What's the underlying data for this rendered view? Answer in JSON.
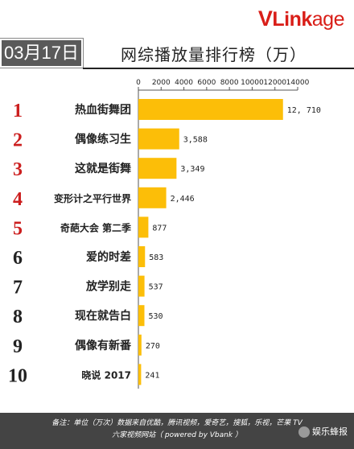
{
  "logo": {
    "v": "V",
    "l": "L",
    "ink": "ink",
    "age": "age"
  },
  "date": "03月17日",
  "title": "网综播放量排行榜（万）",
  "footer": {
    "line1": "备注：单位（万次）数据来自优酷，腾讯视频，爱奇艺，搜狐，乐视，芒果 TV",
    "line2": "六家视频网站（ powered by Vbank ）"
  },
  "watermark": "娱乐蜂报",
  "colors": {
    "bar": "#fcbe08",
    "rank": "#cc1f1f",
    "rank_dark": "#222222"
  },
  "chart_data": {
    "type": "bar",
    "orientation": "horizontal",
    "ranks": [
      "1",
      "2",
      "3",
      "4",
      "5",
      "6",
      "7",
      "8",
      "9",
      "10"
    ],
    "categories": [
      "热血街舞团",
      "偶像练习生",
      "这就是街舞",
      "变形计之平行世界",
      "奇葩大会 第二季",
      "爱的时差",
      "放学别走",
      "现在就告白",
      "偶像有新番",
      "晓说 2017"
    ],
    "values": [
      12710,
      3588,
      3349,
      2446,
      877,
      583,
      537,
      530,
      270,
      241
    ],
    "value_labels": [
      "12, 710",
      "3,588",
      "3,349",
      "2,446",
      "877",
      "583",
      "537",
      "530",
      "270",
      "241"
    ],
    "xticks": [
      0,
      2000,
      4000,
      6000,
      8000,
      10000,
      12000,
      14000
    ],
    "xtick_labels": [
      "0",
      "2000",
      "4000",
      "6000",
      "8000",
      "10000",
      "12000",
      "14000"
    ],
    "xlim": [
      0,
      14000
    ],
    "grid": false
  }
}
